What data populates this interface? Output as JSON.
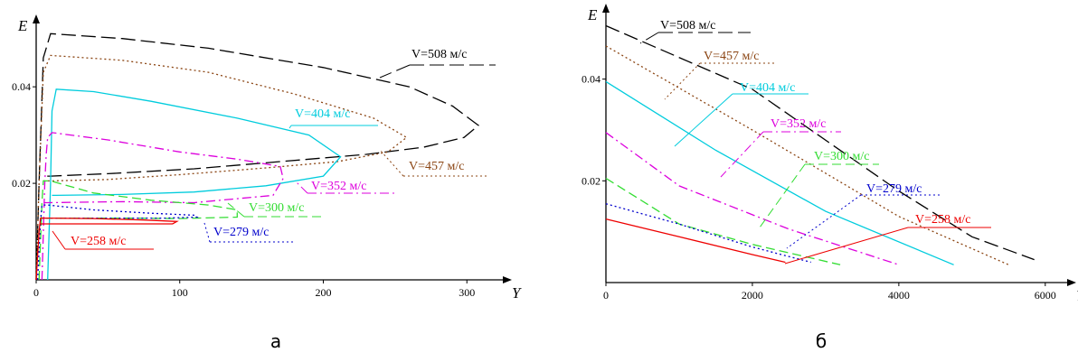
{
  "chart_data": [
    {
      "type": "line",
      "panel_label": "а",
      "xlabel": "Y",
      "ylabel": "E",
      "xlim": [
        0,
        320
      ],
      "ylim": [
        0,
        0.052
      ],
      "xticks": [
        "0",
        "100",
        "200",
        "300"
      ],
      "yticks": [
        "0.02",
        "0.04"
      ],
      "grid": false,
      "series": [
        {
          "name": "V=508 м/с",
          "color": "#000000",
          "dash": "long-dash",
          "points": [
            [
              0,
              0
            ],
            [
              2,
              0.02
            ],
            [
              5,
              0.046
            ],
            [
              10,
              0.051
            ],
            [
              60,
              0.05
            ],
            [
              120,
              0.048
            ],
            [
              200,
              0.044
            ],
            [
              260,
              0.04
            ],
            [
              290,
              0.036
            ],
            [
              308,
              0.032
            ],
            [
              298,
              0.0295
            ],
            [
              270,
              0.0275
            ],
            [
              230,
              0.026
            ],
            [
              170,
              0.0245
            ],
            [
              110,
              0.023
            ],
            [
              50,
              0.022
            ],
            [
              10,
              0.0215
            ],
            [
              4,
              0.0215
            ]
          ]
        },
        {
          "name": "V=457 м/с",
          "color": "#8B4513",
          "dash": "dotted",
          "points": [
            [
              0,
              0
            ],
            [
              2,
              0.02
            ],
            [
              5,
              0.043
            ],
            [
              10,
              0.0465
            ],
            [
              60,
              0.0455
            ],
            [
              120,
              0.043
            ],
            [
              180,
              0.0385
            ],
            [
              235,
              0.0335
            ],
            [
              258,
              0.0295
            ],
            [
              245,
              0.0265
            ],
            [
              210,
              0.0245
            ],
            [
              160,
              0.0232
            ],
            [
              100,
              0.0218
            ],
            [
              50,
              0.0208
            ],
            [
              10,
              0.0205
            ],
            [
              5,
              0.0205
            ]
          ]
        },
        {
          "name": "V=404 м/с",
          "color": "#00CCDD",
          "dash": "solid",
          "points": [
            [
              8,
              0
            ],
            [
              10,
              0.02
            ],
            [
              11,
              0.035
            ],
            [
              14,
              0.0395
            ],
            [
              40,
              0.039
            ],
            [
              80,
              0.037
            ],
            [
              140,
              0.0335
            ],
            [
              190,
              0.03
            ],
            [
              212,
              0.0255
            ],
            [
              200,
              0.0215
            ],
            [
              160,
              0.0195
            ],
            [
              110,
              0.0182
            ],
            [
              60,
              0.0177
            ],
            [
              14,
              0.0175
            ],
            [
              11,
              0.0175
            ]
          ]
        },
        {
          "name": "V=352 м/с",
          "color": "#DD00DD",
          "dash": "dash-dot",
          "points": [
            [
              4,
              0
            ],
            [
              6,
              0.02
            ],
            [
              7,
              0.026
            ],
            [
              8,
              0.0295
            ],
            [
              11,
              0.0305
            ],
            [
              50,
              0.029
            ],
            [
              100,
              0.0265
            ],
            [
              140,
              0.025
            ],
            [
              170,
              0.0235
            ],
            [
              172,
              0.021
            ],
            [
              165,
              0.0175
            ],
            [
              110,
              0.016
            ],
            [
              60,
              0.0162
            ],
            [
              8,
              0.016
            ],
            [
              6,
              0.016
            ]
          ]
        },
        {
          "name": "V=300 м/с",
          "color": "#33DD33",
          "dash": "dashed",
          "points": [
            [
              2,
              0
            ],
            [
              4,
              0.016
            ],
            [
              5,
              0.0205
            ],
            [
              10,
              0.0205
            ],
            [
              40,
              0.018
            ],
            [
              80,
              0.0165
            ],
            [
              120,
              0.0155
            ],
            [
              140,
              0.0145
            ],
            [
              140,
              0.013
            ],
            [
              100,
              0.0127
            ],
            [
              60,
              0.0128
            ],
            [
              10,
              0.0128
            ],
            [
              4,
              0.0128
            ]
          ]
        },
        {
          "name": "V=279 м/с",
          "color": "#0000CC",
          "dash": "dotted",
          "points": [
            [
              1,
              0
            ],
            [
              3,
              0.012
            ],
            [
              4,
              0.0155
            ],
            [
              8,
              0.0155
            ],
            [
              40,
              0.0145
            ],
            [
              80,
              0.0138
            ],
            [
              110,
              0.0134
            ],
            [
              112,
              0.013
            ],
            [
              90,
              0.0128
            ],
            [
              40,
              0.0128
            ],
            [
              4,
              0.0128
            ]
          ]
        },
        {
          "name": "V=258 м/с",
          "color": "#EE0000",
          "dash": "solid",
          "points": [
            [
              0,
              0
            ],
            [
              2,
              0.01
            ],
            [
              3,
              0.0128
            ],
            [
              8,
              0.0128
            ],
            [
              40,
              0.0127
            ],
            [
              75,
              0.0124
            ],
            [
              98,
              0.0121
            ],
            [
              95,
              0.0116
            ],
            [
              60,
              0.0116
            ],
            [
              20,
              0.0116
            ],
            [
              3,
              0.0116
            ]
          ]
        }
      ]
    },
    {
      "type": "line",
      "panel_label": "б",
      "xlabel": "Y",
      "ylabel": "E",
      "xlim": [
        0,
        6200
      ],
      "ylim": [
        0,
        0.052
      ],
      "xticks": [
        "0",
        "2000",
        "4000",
        "6000"
      ],
      "yticks": [
        "0.02",
        "0.04"
      ],
      "grid": false,
      "series": [
        {
          "name": "V=508 м/с",
          "color": "#000000",
          "dash": "long-dash",
          "points": [
            [
              0,
              0.0505
            ],
            [
              2000,
              0.038
            ],
            [
              4000,
              0.018
            ],
            [
              5000,
              0.009
            ],
            [
              5850,
              0.0045
            ]
          ]
        },
        {
          "name": "V=457 м/с",
          "color": "#8B4513",
          "dash": "dotted",
          "points": [
            [
              0,
              0.0465
            ],
            [
              2000,
              0.03
            ],
            [
              4000,
              0.013
            ],
            [
              5500,
              0.0035
            ]
          ]
        },
        {
          "name": "V=404 м/с",
          "color": "#00CCDD",
          "dash": "solid",
          "points": [
            [
              0,
              0.0395
            ],
            [
              1500,
              0.026
            ],
            [
              3000,
              0.014
            ],
            [
              4750,
              0.0035
            ]
          ]
        },
        {
          "name": "V=352 м/с",
          "color": "#DD00DD",
          "dash": "dash-dot",
          "points": [
            [
              0,
              0.0295
            ],
            [
              1000,
              0.019
            ],
            [
              2500,
              0.0105
            ],
            [
              4000,
              0.0035
            ]
          ]
        },
        {
          "name": "V=300 м/с",
          "color": "#33DD33",
          "dash": "dashed",
          "points": [
            [
              0,
              0.0205
            ],
            [
              1000,
              0.0115
            ],
            [
              2000,
              0.0075
            ],
            [
              3200,
              0.0035
            ]
          ]
        },
        {
          "name": "V=279 м/с",
          "color": "#0000CC",
          "dash": "dotted",
          "points": [
            [
              0,
              0.0155
            ],
            [
              1000,
              0.0115
            ],
            [
              2000,
              0.007
            ],
            [
              2800,
              0.004
            ]
          ]
        },
        {
          "name": "V=258 м/с",
          "color": "#EE0000",
          "dash": "solid",
          "points": [
            [
              0,
              0.0125
            ],
            [
              1000,
              0.009
            ],
            [
              2000,
              0.0055
            ],
            [
              2450,
              0.004
            ]
          ]
        }
      ]
    }
  ]
}
